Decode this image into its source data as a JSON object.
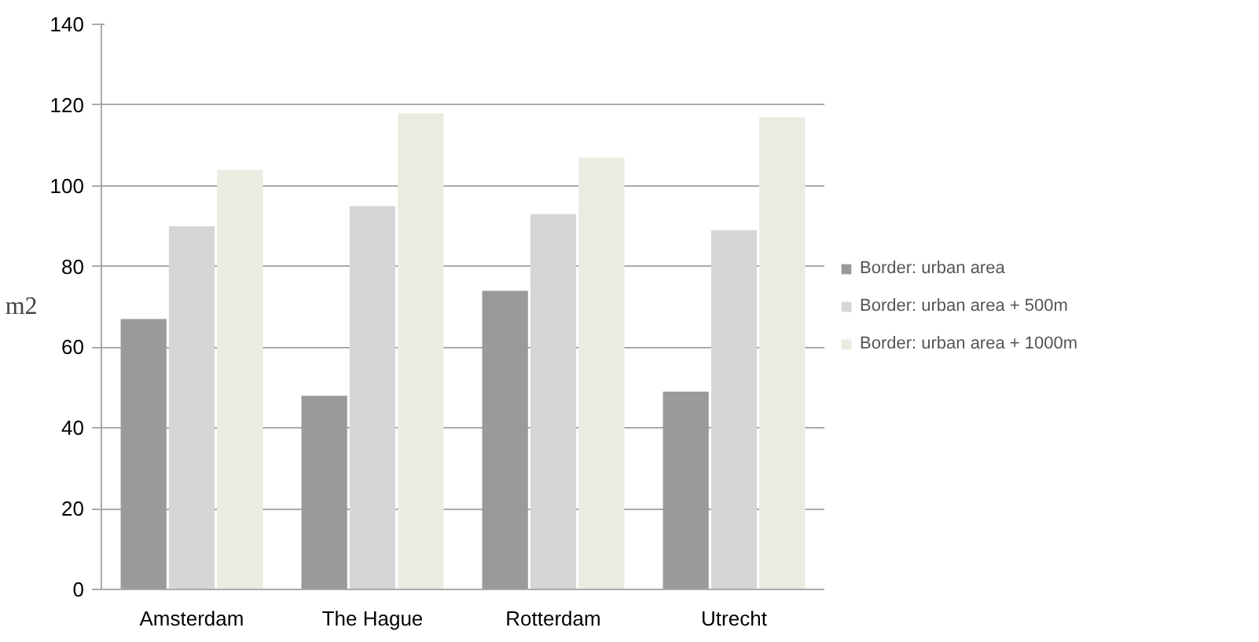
{
  "chart_data": {
    "type": "bar",
    "ylabel": "m2",
    "categories": [
      "Amsterdam",
      "The Hague",
      "Rotterdam",
      "Utrecht"
    ],
    "series": [
      {
        "name": "Border: urban area",
        "color": "#9a9a9a",
        "values": [
          67,
          48,
          74,
          49
        ]
      },
      {
        "name": "Border: urban area + 500m",
        "color": "#d6d6d8",
        "values": [
          90,
          95,
          93,
          89
        ]
      },
      {
        "name": "Border: urban area + 1000m",
        "color": "#ebebe2",
        "values": [
          104,
          118,
          107,
          117
        ]
      }
    ],
    "ylim": [
      0,
      140
    ],
    "yticks": [
      0,
      20,
      40,
      60,
      80,
      100,
      120,
      140
    ],
    "grid": "y",
    "legend": "right"
  }
}
